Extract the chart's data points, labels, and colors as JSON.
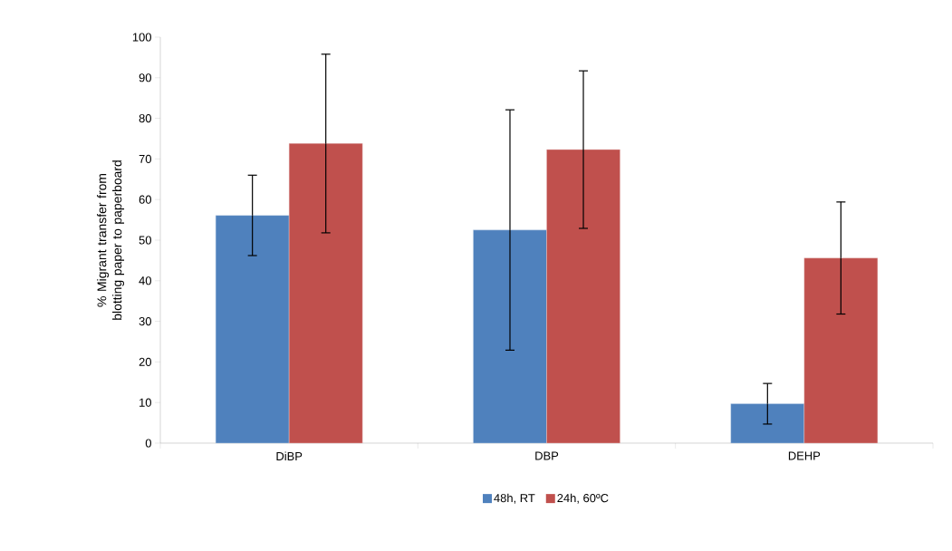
{
  "chart_data": {
    "type": "bar",
    "ylabel": "% Migrant transfer from blotting paper to paperboard",
    "categories": [
      "DiBP",
      "DBP",
      "DEHP"
    ],
    "series": [
      {
        "name": "48h, RT",
        "color": "#4f81bd",
        "values": [
          56.1,
          52.5,
          9.7
        ],
        "errors": [
          9.9,
          29.6,
          5.0
        ]
      },
      {
        "name": "24h, 60ºC",
        "color": "#c0504d",
        "values": [
          73.8,
          72.3,
          45.6
        ],
        "errors": [
          22.0,
          19.4,
          13.8
        ]
      }
    ],
    "ylim": [
      0,
      100
    ],
    "yticks": [
      0,
      10,
      20,
      30,
      40,
      50,
      60,
      70,
      80,
      90,
      100
    ],
    "grid": false,
    "legend": "bottom"
  }
}
